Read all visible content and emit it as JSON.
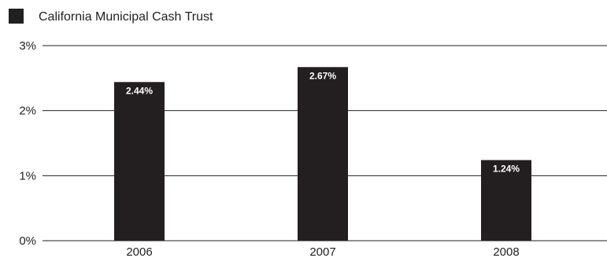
{
  "chart_data": {
    "type": "bar",
    "categories": [
      "2006",
      "2007",
      "2008"
    ],
    "series": [
      {
        "name": "California Municipal Cash Trust",
        "values": [
          2.44,
          2.67,
          1.24
        ],
        "labels": [
          "2.44%",
          "2.67%",
          "1.24%"
        ]
      }
    ],
    "yticks": [
      "0%",
      "1%",
      "2%",
      "3%"
    ],
    "ylim": [
      0,
      3
    ],
    "grid": true,
    "legend": "top-left",
    "colors": {
      "bar": "#231f20",
      "grid": "#231f20",
      "label": "#ffffff"
    }
  }
}
